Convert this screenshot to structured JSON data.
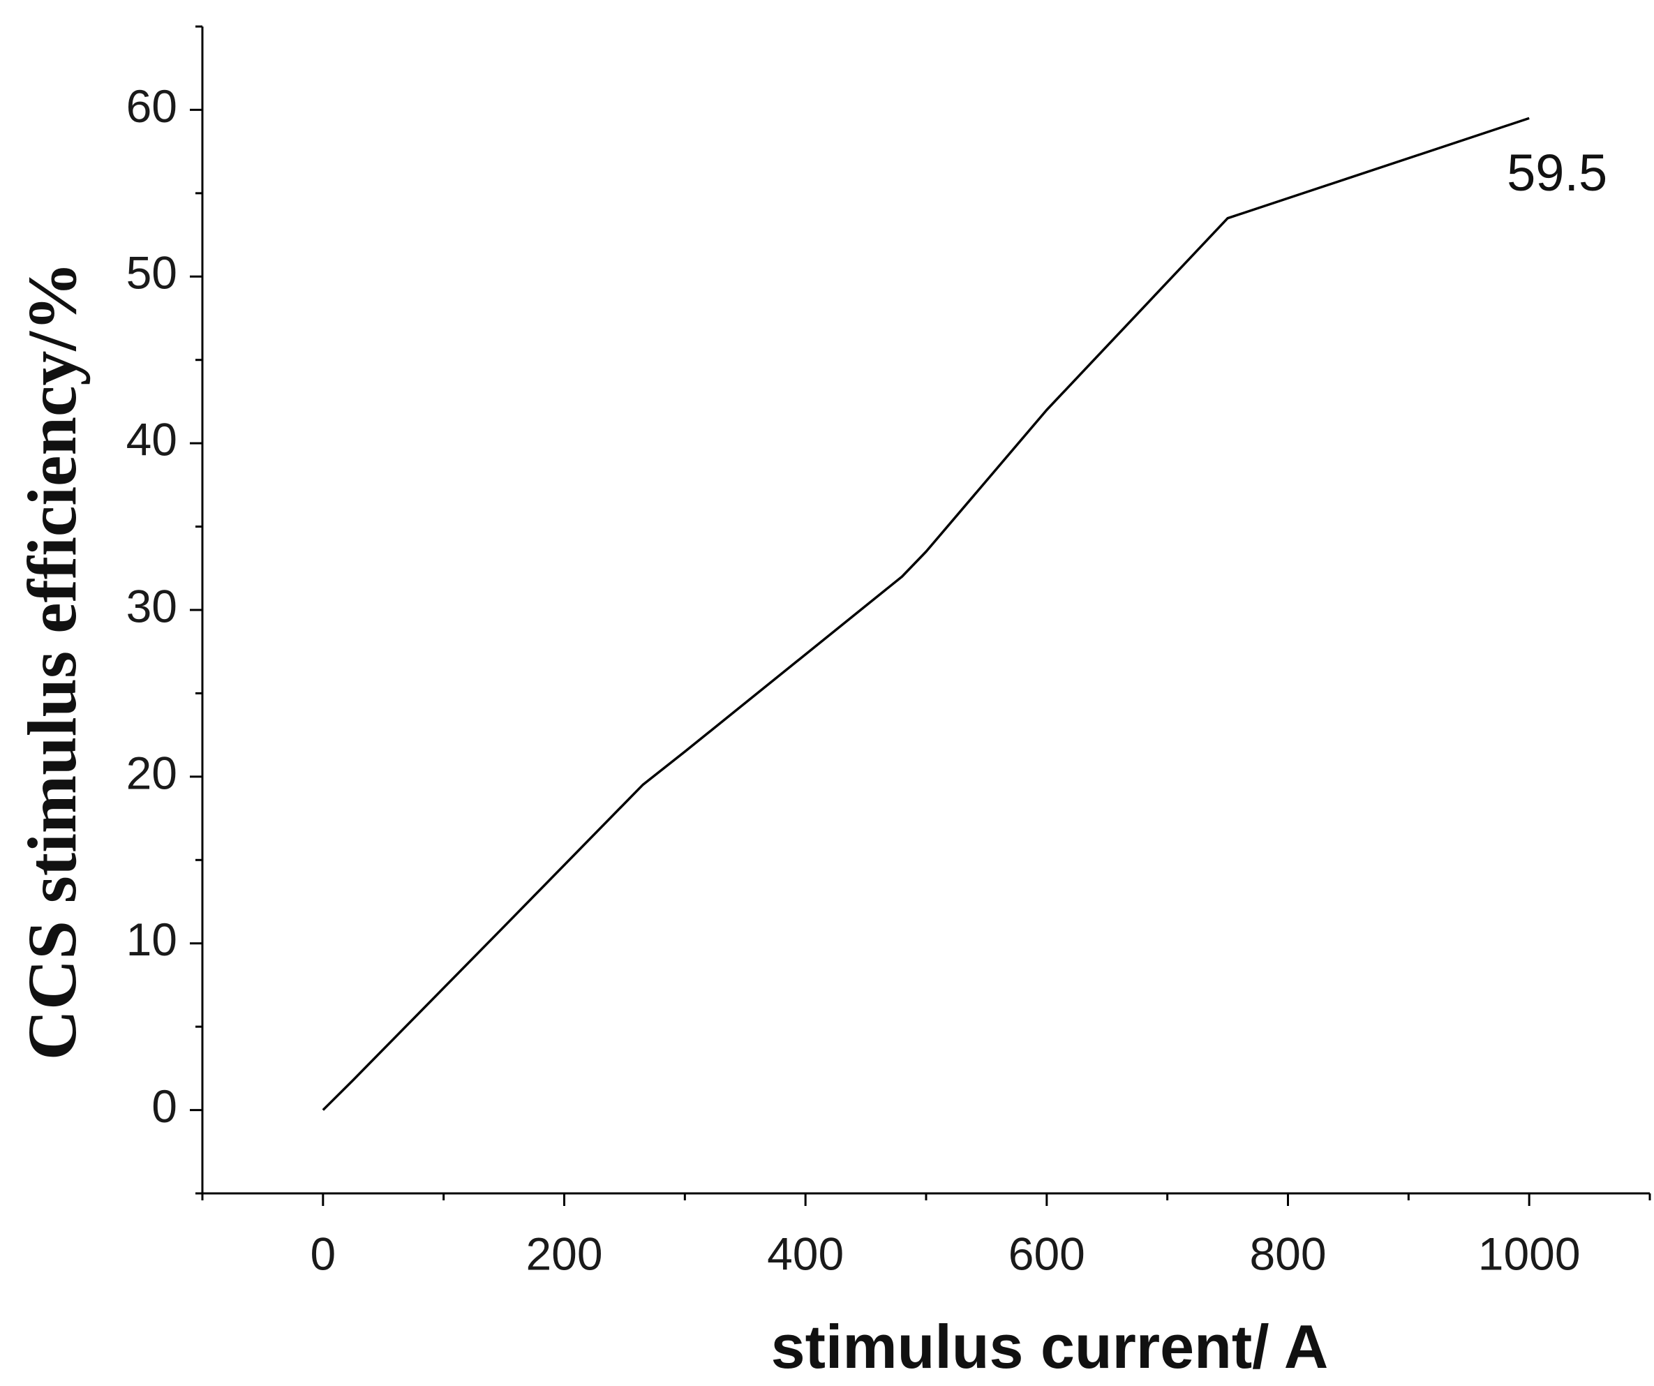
{
  "chart_data": {
    "type": "line",
    "x_label": "stimulus current/ A",
    "y_label": "CCS stimulus efficiency/%",
    "x": [
      0,
      25,
      150,
      265,
      300,
      480,
      500,
      600,
      750,
      1000
    ],
    "values": [
      0,
      1.8,
      11,
      19.5,
      21.5,
      32,
      33.5,
      42,
      53.5,
      59.5
    ],
    "color": "#000000",
    "xlim": [
      -100,
      1100
    ],
    "xticks": [
      0,
      200,
      400,
      600,
      800,
      1000
    ],
    "xminor_ticks": [
      -100,
      100,
      300,
      500,
      700,
      900,
      1100
    ],
    "ylim": [
      -5,
      65
    ],
    "yticks": [
      0,
      10,
      20,
      30,
      40,
      50,
      60
    ],
    "yminor_ticks": [
      -5,
      5,
      15,
      25,
      35,
      45,
      55,
      65
    ],
    "labeled_point": 9,
    "grid": false
  }
}
